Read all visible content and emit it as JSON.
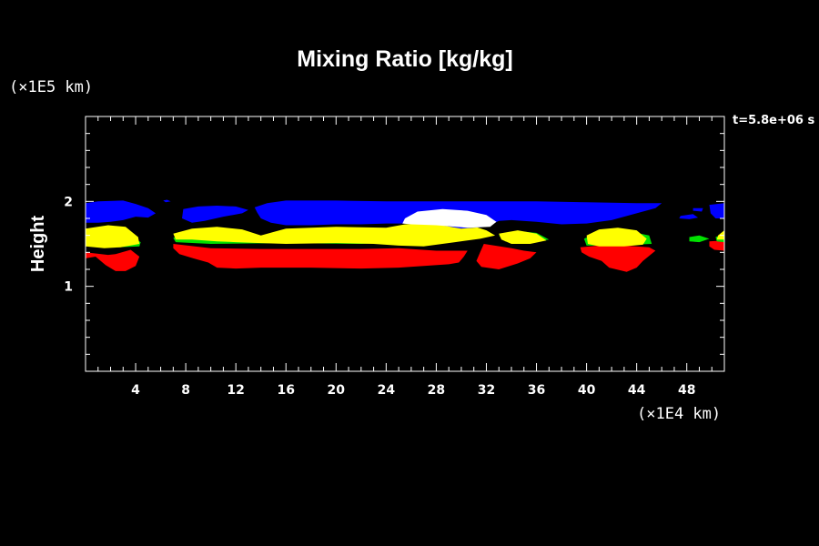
{
  "chart_data": {
    "type": "contour-fill",
    "title": "Mixing Ratio [kg/kg]",
    "xlabel": "",
    "ylabel": "Height",
    "x_unit": "(×1E4 km)",
    "y_unit": "(×1E5 km)",
    "time_label": "t=5.8e+06 s",
    "xlim": [
      0,
      51
    ],
    "ylim": [
      0,
      3
    ],
    "x_ticks": [
      "4",
      "8",
      "12",
      "16",
      "20",
      "24",
      "28",
      "32",
      "36",
      "40",
      "44",
      "48"
    ],
    "x_tick_values": [
      4,
      8,
      12,
      16,
      20,
      24,
      28,
      32,
      36,
      40,
      44,
      48
    ],
    "y_ticks": [
      "1",
      "2"
    ],
    "y_tick_values": [
      1,
      2
    ],
    "background_color": "#000000",
    "layers": [
      {
        "color": "#ff0000",
        "regions": [
          [
            [
              0,
              1.4
            ],
            [
              1.8,
              1.37
            ],
            [
              2.4,
              1.38
            ],
            [
              3.6,
              1.43
            ],
            [
              4.3,
              1.35
            ],
            [
              4.0,
              1.24
            ],
            [
              3.2,
              1.18
            ],
            [
              2.4,
              1.18
            ],
            [
              1.6,
              1.25
            ],
            [
              0.8,
              1.35
            ],
            [
              0,
              1.33
            ]
          ],
          [
            [
              7.0,
              1.5
            ],
            [
              10,
              1.45
            ],
            [
              14,
              1.44
            ],
            [
              18,
              1.44
            ],
            [
              22,
              1.44
            ],
            [
              25,
              1.45
            ],
            [
              28,
              1.42
            ],
            [
              30.5,
              1.42
            ],
            [
              30.2,
              1.35
            ],
            [
              29.8,
              1.28
            ],
            [
              29,
              1.26
            ],
            [
              27,
              1.24
            ],
            [
              25,
              1.22
            ],
            [
              22,
              1.21
            ],
            [
              18,
              1.22
            ],
            [
              14,
              1.22
            ],
            [
              12,
              1.21
            ],
            [
              10.5,
              1.22
            ],
            [
              9.8,
              1.28
            ],
            [
              8.6,
              1.33
            ],
            [
              7.5,
              1.38
            ],
            [
              7.0,
              1.45
            ]
          ],
          [
            [
              31.8,
              1.5
            ],
            [
              34,
              1.45
            ],
            [
              35,
              1.42
            ],
            [
              36,
              1.4
            ],
            [
              35.5,
              1.33
            ],
            [
              34.5,
              1.27
            ],
            [
              33,
              1.2
            ],
            [
              31.6,
              1.23
            ],
            [
              31.2,
              1.3
            ],
            [
              31.5,
              1.4
            ]
          ],
          [
            [
              39.5,
              1.46
            ],
            [
              41,
              1.48
            ],
            [
              43,
              1.48
            ],
            [
              45,
              1.46
            ],
            [
              45.5,
              1.42
            ],
            [
              45,
              1.36
            ],
            [
              44.5,
              1.3
            ],
            [
              44,
              1.22
            ],
            [
              43.2,
              1.17
            ],
            [
              41.8,
              1.22
            ],
            [
              41.2,
              1.3
            ],
            [
              40.2,
              1.35
            ],
            [
              39.6,
              1.4
            ]
          ],
          [
            [
              49.8,
              1.53
            ],
            [
              51,
              1.54
            ],
            [
              51,
              1.42
            ],
            [
              50.2,
              1.43
            ],
            [
              49.8,
              1.47
            ]
          ]
        ]
      },
      {
        "color": "#00e000",
        "regions": [
          [
            [
              0,
              1.56
            ],
            [
              1.5,
              1.62
            ],
            [
              2.5,
              1.63
            ],
            [
              3.5,
              1.6
            ],
            [
              4.4,
              1.52
            ],
            [
              4.3,
              1.47
            ],
            [
              2.5,
              1.46
            ],
            [
              0,
              1.48
            ]
          ],
          [
            [
              7.0,
              1.57
            ],
            [
              8.0,
              1.64
            ],
            [
              10,
              1.65
            ],
            [
              13.0,
              1.63
            ],
            [
              14,
              1.57
            ],
            [
              16,
              1.61
            ],
            [
              20,
              1.63
            ],
            [
              24,
              1.62
            ],
            [
              25,
              1.52
            ],
            [
              22,
              1.5
            ],
            [
              16,
              1.51
            ],
            [
              10,
              1.5
            ],
            [
              7.2,
              1.52
            ]
          ],
          [
            [
              33,
              1.6
            ],
            [
              34.5,
              1.65
            ],
            [
              36,
              1.63
            ],
            [
              37,
              1.55
            ],
            [
              35.5,
              1.52
            ],
            [
              33.5,
              1.53
            ]
          ],
          [
            [
              39.8,
              1.56
            ],
            [
              41,
              1.65
            ],
            [
              43,
              1.66
            ],
            [
              45,
              1.6
            ],
            [
              45.2,
              1.5
            ],
            [
              42,
              1.48
            ],
            [
              40,
              1.48
            ]
          ],
          [
            [
              48.2,
              1.58
            ],
            [
              49,
              1.6
            ],
            [
              49.8,
              1.56
            ],
            [
              49,
              1.52
            ],
            [
              48.2,
              1.53
            ]
          ],
          [
            [
              50.3,
              1.58
            ],
            [
              51,
              1.62
            ],
            [
              51,
              1.52
            ],
            [
              50.4,
              1.53
            ]
          ]
        ]
      },
      {
        "color": "#ffff00",
        "regions": [
          [
            [
              0,
              1.68
            ],
            [
              1.8,
              1.72
            ],
            [
              3.2,
              1.7
            ],
            [
              4.2,
              1.58
            ],
            [
              4.3,
              1.5
            ],
            [
              2.8,
              1.46
            ],
            [
              1.5,
              1.45
            ],
            [
              0,
              1.47
            ]
          ],
          [
            [
              7.0,
              1.62
            ],
            [
              8.5,
              1.68
            ],
            [
              10.5,
              1.7
            ],
            [
              12.5,
              1.67
            ],
            [
              14,
              1.6
            ],
            [
              16,
              1.68
            ],
            [
              20,
              1.7
            ],
            [
              24,
              1.69
            ],
            [
              25.5,
              1.73
            ],
            [
              28,
              1.75
            ],
            [
              30.5,
              1.73
            ],
            [
              32,
              1.66
            ],
            [
              32.7,
              1.6
            ],
            [
              31.5,
              1.56
            ],
            [
              29.5,
              1.52
            ],
            [
              27,
              1.47
            ],
            [
              25,
              1.48
            ],
            [
              23,
              1.5
            ],
            [
              20,
              1.51
            ],
            [
              16,
              1.5
            ],
            [
              14,
              1.51
            ],
            [
              12,
              1.52
            ],
            [
              10.5,
              1.53
            ],
            [
              8.5,
              1.55
            ],
            [
              7.2,
              1.55
            ]
          ],
          [
            [
              33,
              1.62
            ],
            [
              34.5,
              1.66
            ],
            [
              36,
              1.62
            ],
            [
              36.8,
              1.54
            ],
            [
              35.5,
              1.5
            ],
            [
              34,
              1.5
            ],
            [
              33.2,
              1.55
            ]
          ],
          [
            [
              40,
              1.6
            ],
            [
              41,
              1.67
            ],
            [
              42.5,
              1.69
            ],
            [
              44,
              1.66
            ],
            [
              44.8,
              1.56
            ],
            [
              44.5,
              1.49
            ],
            [
              43,
              1.47
            ],
            [
              41,
              1.47
            ],
            [
              40.1,
              1.5
            ]
          ],
          [
            [
              50.5,
              1.6
            ],
            [
              51,
              1.66
            ],
            [
              51,
              1.55
            ],
            [
              50.4,
              1.55
            ]
          ]
        ]
      },
      {
        "color": "#0000ff",
        "regions": [
          [
            [
              0,
              1.98
            ],
            [
              1,
              2.0
            ],
            [
              3,
              2.01
            ],
            [
              4,
              1.97
            ],
            [
              5,
              1.92
            ],
            [
              5.6,
              1.86
            ],
            [
              5,
              1.81
            ],
            [
              4,
              1.82
            ],
            [
              3,
              1.78
            ],
            [
              2,
              1.76
            ],
            [
              1,
              1.75
            ],
            [
              0,
              1.75
            ]
          ],
          [
            [
              6.2,
              2.01
            ],
            [
              6.5,
              2.02
            ],
            [
              6.8,
              2.0
            ],
            [
              6.4,
              1.99
            ]
          ],
          [
            [
              7.8,
              1.91
            ],
            [
              9,
              1.94
            ],
            [
              10.5,
              1.95
            ],
            [
              12,
              1.94
            ],
            [
              13,
              1.9
            ],
            [
              12.5,
              1.86
            ],
            [
              11,
              1.82
            ],
            [
              9.5,
              1.77
            ],
            [
              8.5,
              1.75
            ],
            [
              7.7,
              1.8
            ]
          ],
          [
            [
              13.5,
              1.93
            ],
            [
              14.5,
              1.98
            ],
            [
              16,
              2.01
            ],
            [
              20,
              2.01
            ],
            [
              24,
              2.0
            ],
            [
              28,
              2.0
            ],
            [
              32,
              2.0
            ],
            [
              36,
              2.0
            ],
            [
              40,
              1.99
            ],
            [
              44,
              1.98
            ],
            [
              46,
              1.98
            ],
            [
              45.5,
              1.92
            ],
            [
              44,
              1.86
            ],
            [
              42,
              1.78
            ],
            [
              40,
              1.74
            ],
            [
              38,
              1.73
            ],
            [
              36,
              1.76
            ],
            [
              34,
              1.78
            ],
            [
              33,
              1.77
            ],
            [
              32,
              1.7
            ],
            [
              30,
              1.68
            ],
            [
              28,
              1.73
            ],
            [
              26,
              1.74
            ],
            [
              24,
              1.74
            ],
            [
              22,
              1.73
            ],
            [
              20,
              1.73
            ],
            [
              18,
              1.72
            ],
            [
              16,
              1.72
            ],
            [
              14.8,
              1.75
            ],
            [
              14,
              1.8
            ],
            [
              13.7,
              1.87
            ]
          ],
          [
            [
              47.5,
              1.83
            ],
            [
              48.5,
              1.85
            ],
            [
              48.9,
              1.81
            ],
            [
              48.2,
              1.79
            ],
            [
              47.4,
              1.8
            ]
          ],
          [
            [
              48.5,
              1.92
            ],
            [
              49.3,
              1.92
            ],
            [
              49.2,
              1.88
            ],
            [
              48.5,
              1.89
            ]
          ],
          [
            [
              49.8,
              1.96
            ],
            [
              51,
              1.98
            ],
            [
              51,
              1.8
            ],
            [
              50.3,
              1.8
            ],
            [
              49.9,
              1.86
            ]
          ]
        ]
      },
      {
        "color": "#ffffff",
        "regions": [
          [
            [
              25.5,
              1.8
            ],
            [
              26.5,
              1.88
            ],
            [
              28.5,
              1.91
            ],
            [
              30.5,
              1.89
            ],
            [
              32,
              1.84
            ],
            [
              32.8,
              1.76
            ],
            [
              32.3,
              1.7
            ],
            [
              30.5,
              1.69
            ],
            [
              28,
              1.72
            ],
            [
              26,
              1.73
            ],
            [
              25.3,
              1.74
            ]
          ]
        ]
      }
    ]
  }
}
